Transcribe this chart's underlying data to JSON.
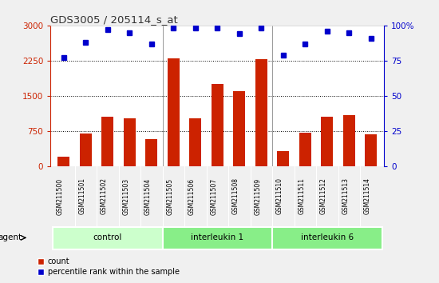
{
  "title": "GDS3005 / 205114_s_at",
  "samples": [
    "GSM211500",
    "GSM211501",
    "GSM211502",
    "GSM211503",
    "GSM211504",
    "GSM211505",
    "GSM211506",
    "GSM211507",
    "GSM211508",
    "GSM211509",
    "GSM211510",
    "GSM211511",
    "GSM211512",
    "GSM211513",
    "GSM211514"
  ],
  "counts": [
    200,
    700,
    1050,
    1020,
    580,
    2300,
    1020,
    1750,
    1600,
    2280,
    320,
    720,
    1060,
    1100,
    680
  ],
  "percentile_ranks": [
    77,
    88,
    97,
    95,
    87,
    98,
    98,
    98,
    94,
    98,
    79,
    87,
    96,
    95,
    91
  ],
  "bar_color": "#cc2200",
  "dot_color": "#0000cc",
  "ylim_left": [
    0,
    3000
  ],
  "ylim_right": [
    0,
    100
  ],
  "yticks_left": [
    0,
    750,
    1500,
    2250,
    3000
  ],
  "yticks_right": [
    0,
    25,
    50,
    75,
    100
  ],
  "group_configs": [
    {
      "label": "control",
      "start": 0,
      "end": 5,
      "color": "#ccffcc"
    },
    {
      "label": "interleukin 1",
      "start": 5,
      "end": 10,
      "color": "#88ee88"
    },
    {
      "label": "interleukin 6",
      "start": 10,
      "end": 15,
      "color": "#88ee88"
    }
  ],
  "agent_label": "agent",
  "legend_count_label": "count",
  "legend_pct_label": "percentile rank within the sample",
  "bg_color": "#f0f0f0",
  "plot_bg_color": "#ffffff",
  "xtick_bg_color": "#cccccc",
  "title_color": "#333333",
  "left_axis_color": "#cc2200",
  "right_axis_color": "#0000cc",
  "grid_color": "#000000"
}
